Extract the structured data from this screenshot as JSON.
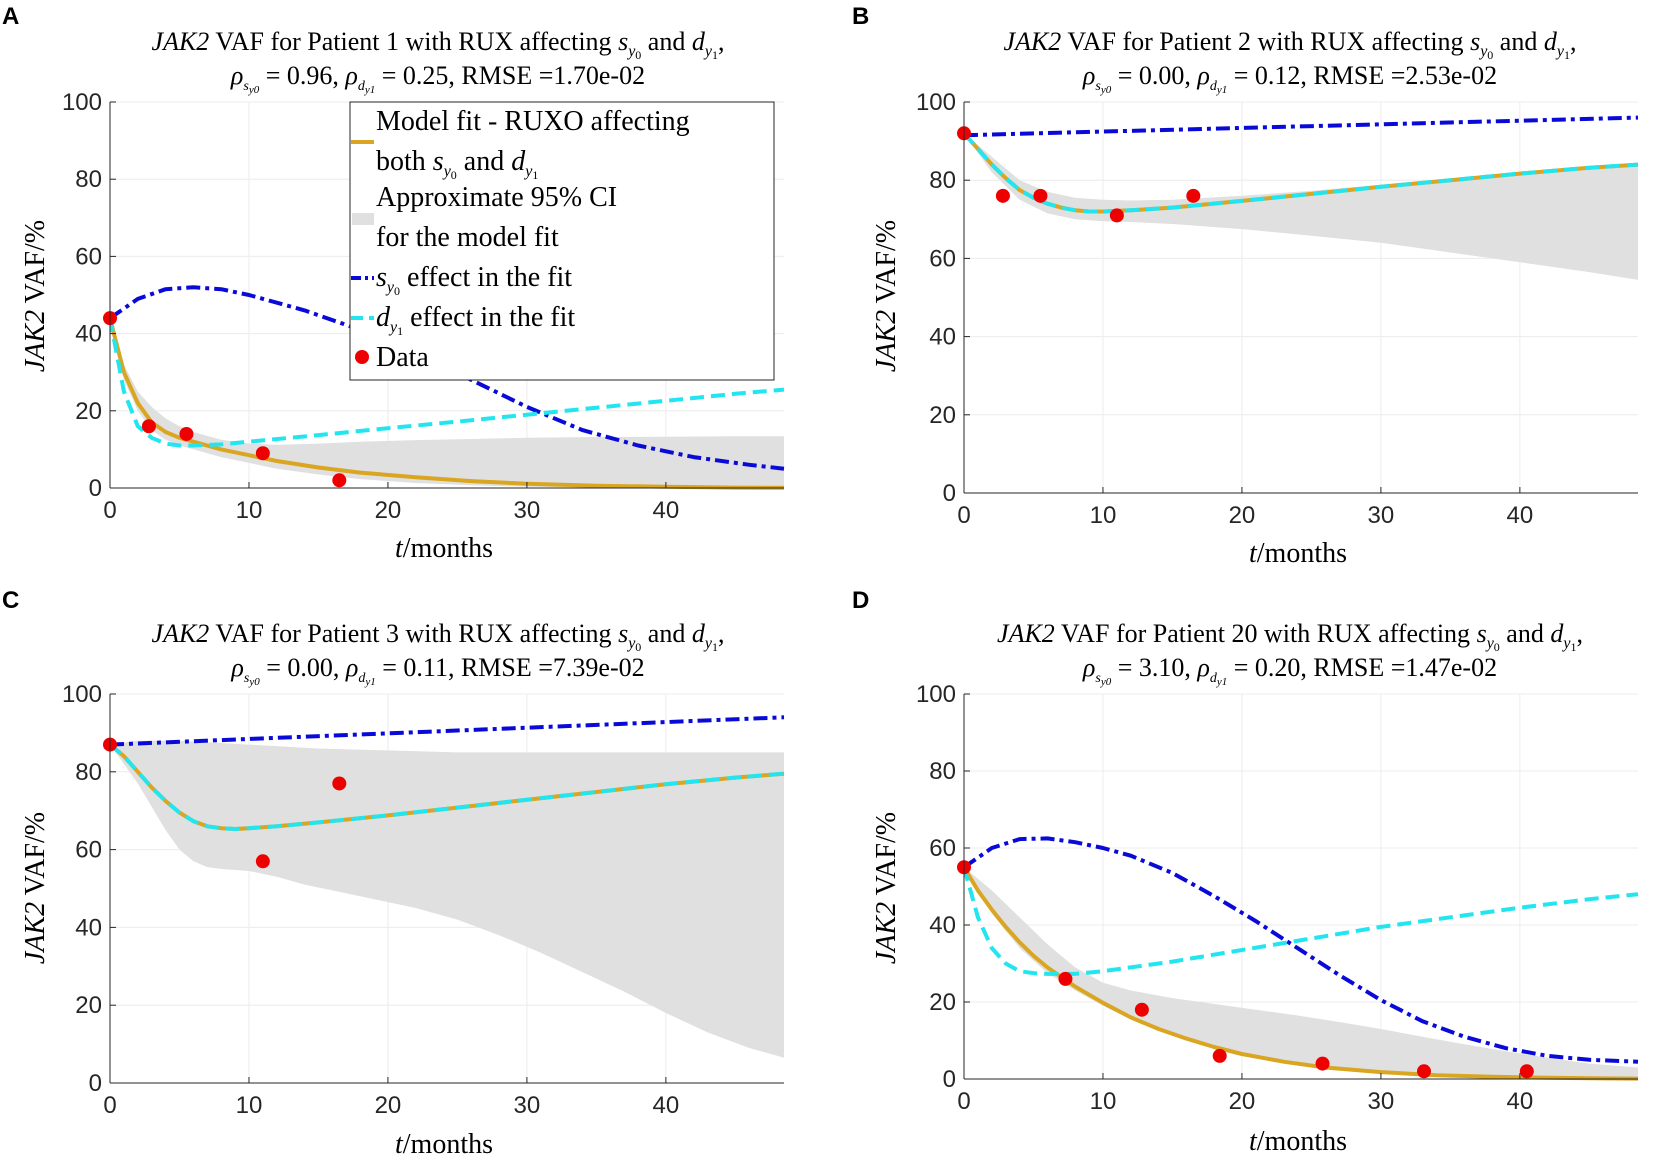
{
  "colors": {
    "model_fit": "#DAA520",
    "ci": "#E0E0E0",
    "s_effect": "#0A0AD8",
    "d_effect": "#22E5F0",
    "data": "#EE0000"
  },
  "chart_data": [
    {
      "type": "line",
      "panel": "A",
      "title_line1": "JAK2 VAF for Patient 1 with RUX affecting s_y0 and d_y1,",
      "title_line2": "ρ_sy0 = 0.96, ρ_dy1 = 0.25, RMSE =1.70e-02",
      "xlabel": "t/months",
      "ylabel": "JAK2 VAF/%",
      "xlim": [
        0,
        48.5
      ],
      "ylim": [
        0,
        100
      ],
      "xticks": [
        0,
        10,
        20,
        30,
        40
      ],
      "yticks": [
        0,
        20,
        40,
        60,
        80,
        100
      ],
      "grid": true,
      "legend_position": "top-right",
      "legend": [
        "Model fit - RUXO affecting both s_y0 and d_y1",
        "Approximate 95% CI for the model fit",
        "s_y0 effect in the fit",
        "d_y1 effect in the fit",
        "Data"
      ],
      "data_points": {
        "x": [
          0,
          2.8,
          5.5,
          11,
          16.5
        ],
        "y": [
          44,
          16,
          14,
          9,
          2
        ]
      },
      "model_fit": {
        "x": [
          0,
          1,
          2,
          3,
          4,
          5,
          6,
          8,
          10,
          12,
          15,
          18,
          22,
          26,
          30,
          35,
          40,
          45,
          48.5
        ],
        "y": [
          44,
          30,
          22,
          17,
          14.5,
          13,
          12,
          10,
          8.5,
          7,
          5.3,
          4,
          2.8,
          1.8,
          1.1,
          0.6,
          0.3,
          0.1,
          0.05
        ]
      },
      "s_effect": {
        "x": [
          0,
          2,
          4,
          6,
          8,
          10,
          14,
          18,
          22,
          26,
          30,
          34,
          38,
          42,
          46,
          48.5
        ],
        "y": [
          44,
          49,
          51.5,
          52,
          51.5,
          50,
          46,
          41,
          35,
          28,
          21,
          15,
          11,
          8,
          6,
          5
        ]
      },
      "d_effect": {
        "x": [
          0,
          1,
          2,
          3,
          4,
          5,
          6,
          8,
          10,
          15,
          20,
          25,
          30,
          35,
          40,
          45,
          48.5
        ],
        "y": [
          44,
          25,
          16,
          13,
          11.5,
          11,
          11,
          11.3,
          12,
          13.7,
          15.5,
          17.2,
          19,
          20.8,
          22.6,
          24.4,
          25.5
        ]
      },
      "ci_upper": {
        "x": [
          0,
          1,
          2,
          3,
          4,
          5,
          6,
          8,
          10,
          12,
          15,
          18,
          22,
          26,
          30,
          35,
          40,
          45,
          48.5
        ],
        "y": [
          44,
          32,
          25,
          21,
          18,
          16,
          14.5,
          12.5,
          11.5,
          11.2,
          11.5,
          12,
          12.4,
          12.7,
          13,
          13.2,
          13.3,
          13.4,
          13.4
        ]
      },
      "ci_lower": {
        "x": [
          0,
          1,
          2,
          3,
          4,
          5,
          6,
          8,
          10,
          12,
          15,
          18,
          22,
          26,
          30,
          35,
          40,
          45,
          48.5
        ],
        "y": [
          44,
          28,
          20,
          15,
          12.5,
          11,
          10,
          8,
          6.5,
          5,
          3.5,
          2.3,
          1.3,
          0.7,
          0.3,
          0.1,
          0,
          0,
          0
        ]
      }
    },
    {
      "type": "line",
      "panel": "B",
      "title_line1": "JAK2 VAF for Patient 2 with RUX affecting s_y0 and d_y1,",
      "title_line2": "ρ_sy0 = 0.00, ρ_dy1 = 0.12, RMSE =2.53e-02",
      "xlabel": "t/months",
      "ylabel": "JAK2 VAF/%",
      "xlim": [
        0,
        48.5
      ],
      "ylim": [
        0,
        100
      ],
      "xticks": [
        0,
        10,
        20,
        30,
        40
      ],
      "yticks": [
        0,
        20,
        40,
        60,
        80,
        100
      ],
      "grid": true,
      "data_points": {
        "x": [
          0,
          2.8,
          5.5,
          11,
          16.5
        ],
        "y": [
          92,
          76,
          76,
          71,
          76
        ]
      },
      "model_fit": {
        "x": [
          0,
          1,
          2,
          3,
          4,
          5,
          6,
          7,
          8,
          9,
          10,
          12,
          15,
          20,
          25,
          30,
          35,
          40,
          45,
          48.5
        ],
        "y": [
          92,
          88,
          84,
          80.5,
          77.5,
          75.5,
          74,
          73,
          72.3,
          72,
          72,
          72.3,
          73,
          74.7,
          76.5,
          78.3,
          80,
          81.7,
          83.2,
          84
        ]
      },
      "s_effect": {
        "x": [
          0,
          48.5
        ],
        "y": [
          91.5,
          96
        ]
      },
      "d_effect": {
        "x": [
          0,
          1,
          2,
          3,
          4,
          5,
          6,
          7,
          8,
          9,
          10,
          12,
          15,
          20,
          25,
          30,
          35,
          40,
          45,
          48.5
        ],
        "y": [
          92,
          88,
          84,
          80.5,
          77.5,
          75.5,
          74,
          73,
          72.3,
          72,
          72,
          72.3,
          73,
          74.7,
          76.5,
          78.3,
          80,
          81.7,
          83.2,
          84
        ]
      },
      "ci_upper": {
        "x": [
          0,
          2,
          4,
          6,
          8,
          10,
          12,
          15,
          20,
          25,
          30,
          35,
          40,
          45,
          48.5
        ],
        "y": [
          92,
          86,
          80,
          77,
          75.5,
          75,
          74.8,
          75,
          76,
          77.3,
          78.8,
          80.3,
          81.8,
          83.2,
          84
        ]
      },
      "ci_lower": {
        "x": [
          0,
          2,
          4,
          6,
          8,
          10,
          12,
          15,
          20,
          25,
          30,
          35,
          40,
          45,
          48.5
        ],
        "y": [
          92,
          82,
          75,
          71.5,
          70,
          69.5,
          69.3,
          68.8,
          67.5,
          65.8,
          64,
          61.5,
          59,
          56.5,
          54.5
        ]
      }
    },
    {
      "type": "line",
      "panel": "C",
      "title_line1": "JAK2 VAF for Patient 3 with RUX affecting s_y0 and d_y1,",
      "title_line2": "ρ_sy0 = 0.00, ρ_dy1 = 0.11, RMSE =7.39e-02",
      "xlabel": "t/months",
      "ylabel": "JAK2 VAF/%",
      "xlim": [
        0,
        48.5
      ],
      "ylim": [
        0,
        100
      ],
      "xticks": [
        0,
        10,
        20,
        30,
        40
      ],
      "yticks": [
        0,
        20,
        40,
        60,
        80,
        100
      ],
      "grid": true,
      "data_points": {
        "x": [
          0,
          11,
          16.5
        ],
        "y": [
          87,
          57,
          77
        ]
      },
      "model_fit": {
        "x": [
          0,
          1,
          2,
          3,
          4,
          5,
          6,
          7,
          8,
          9,
          10,
          12,
          15,
          20,
          25,
          30,
          35,
          40,
          45,
          48.5
        ],
        "y": [
          87,
          84,
          80,
          76,
          72.5,
          69.5,
          67.3,
          66,
          65.5,
          65.3,
          65.5,
          66,
          67,
          68.8,
          70.8,
          72.8,
          74.8,
          76.8,
          78.5,
          79.5
        ]
      },
      "s_effect": {
        "x": [
          0,
          48.5
        ],
        "y": [
          87,
          94
        ]
      },
      "d_effect": {
        "x": [
          0,
          1,
          2,
          3,
          4,
          5,
          6,
          7,
          8,
          9,
          10,
          12,
          15,
          20,
          25,
          30,
          35,
          40,
          45,
          48.5
        ],
        "y": [
          87,
          84,
          80,
          76,
          72.5,
          69.5,
          67.3,
          66,
          65.5,
          65.3,
          65.5,
          66,
          67,
          68.8,
          70.8,
          72.8,
          74.8,
          76.8,
          78.5,
          79.5
        ]
      },
      "ci_upper": {
        "x": [
          0,
          2,
          5,
          10,
          15,
          20,
          25,
          30,
          35,
          40,
          45,
          48.5
        ],
        "y": [
          87,
          88,
          88,
          87,
          86,
          85.5,
          85,
          85,
          85,
          85,
          85,
          85
        ]
      },
      "ci_lower": {
        "x": [
          0,
          1,
          2,
          3,
          4,
          5,
          6,
          7,
          8,
          10,
          12,
          14,
          16,
          18,
          20,
          22,
          25,
          28,
          31,
          34,
          37,
          40,
          43,
          46,
          48.5
        ],
        "y": [
          87,
          82,
          77,
          71,
          65,
          60,
          57,
          55.5,
          55,
          54.5,
          53,
          51,
          49.5,
          48,
          46.5,
          45,
          42,
          38,
          33.5,
          28.5,
          23.5,
          18,
          13,
          9,
          6.5
        ]
      }
    },
    {
      "type": "line",
      "panel": "D",
      "title_line1": "JAK2 VAF for Patient 20 with RUX affecting s_y0 and d_y1,",
      "title_line2": "ρ_sy0 = 3.10, ρ_dy1 = 0.20, RMSE =1.47e-02",
      "xlabel": "t/months",
      "ylabel": "JAK2 VAF/%",
      "xlim": [
        0,
        48.5
      ],
      "ylim": [
        0,
        100
      ],
      "xticks": [
        0,
        10,
        20,
        30,
        40
      ],
      "yticks": [
        0,
        20,
        40,
        60,
        80,
        100
      ],
      "grid": true,
      "data_points": {
        "x": [
          0,
          7.3,
          12.8,
          18.4,
          25.8,
          33.1,
          40.5
        ],
        "y": [
          55,
          26,
          18,
          6,
          4,
          2,
          2
        ]
      },
      "model_fit": {
        "x": [
          0,
          1,
          2,
          3,
          4,
          5,
          6,
          7,
          8,
          10,
          12,
          14,
          16,
          18,
          20,
          23,
          26,
          30,
          34,
          38,
          42,
          46,
          48.5
        ],
        "y": [
          55,
          49,
          44,
          39.5,
          35.5,
          32,
          29,
          26.5,
          24,
          19.8,
          16,
          13,
          10.5,
          8.3,
          6.5,
          4.5,
          3,
          1.8,
          1,
          0.6,
          0.3,
          0.15,
          0.1
        ]
      },
      "s_effect": {
        "x": [
          0,
          2,
          4,
          6,
          8,
          10,
          12,
          15,
          18,
          21,
          24,
          27,
          30,
          33,
          36,
          39,
          42,
          45,
          48.5
        ],
        "y": [
          55,
          60,
          62.3,
          62.5,
          61.5,
          60,
          58,
          53.5,
          47.5,
          41,
          34,
          27,
          20.5,
          15,
          11,
          8,
          6,
          5,
          4.5
        ]
      },
      "d_effect": {
        "x": [
          0,
          1,
          2,
          3,
          4,
          5,
          6,
          8,
          10,
          15,
          20,
          25,
          30,
          35,
          40,
          45,
          48.5
        ],
        "y": [
          55,
          42,
          34,
          30,
          28,
          27.5,
          27.3,
          27.3,
          28,
          30.5,
          33.5,
          36.5,
          39.5,
          42,
          44.5,
          46.7,
          48
        ]
      },
      "ci_upper": {
        "x": [
          0,
          2,
          4,
          6,
          8,
          10,
          12,
          15,
          18,
          21,
          24,
          27,
          30,
          33,
          36,
          39,
          42,
          45,
          48.5
        ],
        "y": [
          55,
          49,
          42,
          35,
          29,
          25,
          23,
          21,
          19.5,
          18,
          16.5,
          14.8,
          13,
          11,
          9,
          7.2,
          5.5,
          4,
          3
        ]
      },
      "ci_lower": {
        "x": [
          0,
          2,
          4,
          6,
          8,
          10,
          12,
          15,
          18,
          21,
          24,
          27,
          30,
          33,
          36,
          40,
          44,
          48.5
        ],
        "y": [
          55,
          43,
          34,
          27.5,
          23,
          19,
          15.5,
          11.3,
          8,
          5.5,
          3.8,
          2.5,
          1.6,
          1,
          0.6,
          0.2,
          0.05,
          0
        ]
      }
    }
  ]
}
